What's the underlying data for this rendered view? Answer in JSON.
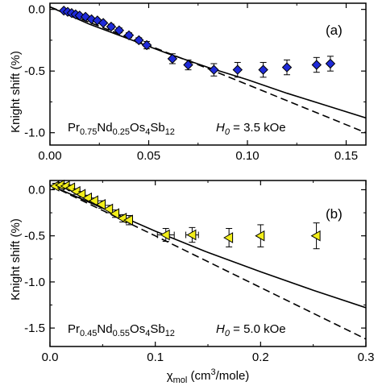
{
  "chart_data": [
    {
      "type": "scatter",
      "panel_label": "(a)",
      "xlim": [
        0,
        0.16
      ],
      "ylim": [
        -1.1,
        0.05
      ],
      "xticks": [
        0,
        0.05,
        0.1,
        0.15
      ],
      "xtick_labels": [
        "0.00",
        "0.05",
        "0.10",
        "0.15"
      ],
      "yticks": [
        0.0,
        -0.5,
        -1.0
      ],
      "ytick_labels": [
        "0.0",
        "-0.5",
        "-1.0"
      ],
      "ylabel": "Knight shift (%)",
      "annotation": {
        "compound": [
          "Pr",
          "0.75",
          "Nd",
          "0.25",
          "Os",
          "4",
          "Sb",
          "12"
        ],
        "field_symbol": "H",
        "field_sub": "0",
        "field_value": " = 3.5 kOe"
      },
      "marker": "diamond",
      "marker_color": "#1f2bd9",
      "series": [
        {
          "values": [
            {
              "x": 0.007,
              "y": -0.01
            },
            {
              "x": 0.009,
              "y": -0.02
            },
            {
              "x": 0.011,
              "y": -0.03
            },
            {
              "x": 0.013,
              "y": -0.04
            },
            {
              "x": 0.015,
              "y": -0.05
            },
            {
              "x": 0.018,
              "y": -0.06
            },
            {
              "x": 0.021,
              "y": -0.08
            },
            {
              "x": 0.024,
              "y": -0.09
            },
            {
              "x": 0.027,
              "y": -0.11
            },
            {
              "x": 0.031,
              "y": -0.14
            },
            {
              "x": 0.035,
              "y": -0.17
            },
            {
              "x": 0.04,
              "y": -0.21
            },
            {
              "x": 0.045,
              "y": -0.25
            },
            {
              "x": 0.049,
              "y": -0.29
            },
            {
              "x": 0.062,
              "y": -0.4
            },
            {
              "x": 0.07,
              "y": -0.45
            },
            {
              "x": 0.083,
              "y": -0.49
            },
            {
              "x": 0.095,
              "y": -0.49
            },
            {
              "x": 0.108,
              "y": -0.49
            },
            {
              "x": 0.12,
              "y": -0.47
            },
            {
              "x": 0.135,
              "y": -0.45
            },
            {
              "x": 0.142,
              "y": -0.44
            }
          ],
          "yerr": [
            0.01,
            0.01,
            0.01,
            0.01,
            0.01,
            0.01,
            0.01,
            0.01,
            0.01,
            0.02,
            0.02,
            0.02,
            0.02,
            0.03,
            0.04,
            0.04,
            0.05,
            0.06,
            0.06,
            0.06,
            0.06,
            0.06
          ]
        }
      ],
      "curves": [
        {
          "style": "solid",
          "x": [
            0.0,
            0.02,
            0.04,
            0.06,
            0.08,
            0.1,
            0.12,
            0.14,
            0.16
          ],
          "y": [
            0.02,
            -0.12,
            -0.24,
            -0.36,
            -0.47,
            -0.57,
            -0.68,
            -0.78,
            -0.88
          ]
        },
        {
          "style": "dashed",
          "x": [
            0.0,
            0.04,
            0.08,
            0.12,
            0.16
          ],
          "y": [
            0.02,
            -0.23,
            -0.48,
            -0.74,
            -1.0
          ]
        }
      ]
    },
    {
      "type": "scatter",
      "panel_label": "(b)",
      "xlim": [
        0,
        0.3
      ],
      "ylim": [
        -1.7,
        0.1
      ],
      "xticks": [
        0,
        0.1,
        0.2,
        0.3
      ],
      "xtick_labels": [
        "0.0",
        "0.1",
        "0.2",
        "0.3"
      ],
      "yticks": [
        0.0,
        -0.5,
        -1.0,
        -1.5
      ],
      "ytick_labels": [
        "0.0",
        "-0.5",
        "-1.0",
        "-1.5"
      ],
      "ylabel": "Knight shift (%)",
      "xlabel_main": "χ",
      "xlabel_sub": "mol",
      "xlabel_rest": " (cm",
      "xlabel_sup": "3",
      "xlabel_tail": "/mole)",
      "annotation": {
        "compound": [
          "Pr",
          "0.45",
          "Nd",
          "0.55",
          "Os",
          "4",
          "Sb",
          "12"
        ],
        "field_symbol": "H",
        "field_sub": "0",
        "field_value": " = 5.0 kOe"
      },
      "marker": "left-triangle",
      "marker_color": "#f2ee1a",
      "series": [
        {
          "values": [
            {
              "x": 0.005,
              "y": 0.04
            },
            {
              "x": 0.01,
              "y": 0.05
            },
            {
              "x": 0.015,
              "y": 0.04
            },
            {
              "x": 0.02,
              "y": 0.02
            },
            {
              "x": 0.025,
              "y": -0.02
            },
            {
              "x": 0.03,
              "y": -0.05
            },
            {
              "x": 0.036,
              "y": -0.09
            },
            {
              "x": 0.042,
              "y": -0.12
            },
            {
              "x": 0.049,
              "y": -0.16
            },
            {
              "x": 0.056,
              "y": -0.21
            },
            {
              "x": 0.062,
              "y": -0.26
            },
            {
              "x": 0.069,
              "y": -0.31
            },
            {
              "x": 0.075,
              "y": -0.33
            },
            {
              "x": 0.11,
              "y": -0.49
            },
            {
              "x": 0.135,
              "y": -0.49
            },
            {
              "x": 0.17,
              "y": -0.52
            },
            {
              "x": 0.2,
              "y": -0.5
            },
            {
              "x": 0.253,
              "y": -0.5
            }
          ],
          "yerr": [
            0.03,
            0.03,
            0.03,
            0.03,
            0.03,
            0.03,
            0.03,
            0.03,
            0.04,
            0.04,
            0.04,
            0.04,
            0.05,
            0.07,
            0.08,
            0.1,
            0.12,
            0.14
          ],
          "xerr": [
            0,
            0,
            0,
            0,
            0,
            0,
            0,
            0,
            0,
            0,
            0,
            0,
            0,
            0.008,
            0.006,
            0,
            0,
            0
          ]
        }
      ],
      "curves": [
        {
          "style": "solid",
          "x": [
            0.0,
            0.05,
            0.1,
            0.15,
            0.2,
            0.25,
            0.3
          ],
          "y": [
            0.05,
            -0.2,
            -0.45,
            -0.68,
            -0.89,
            -1.09,
            -1.28
          ]
        },
        {
          "style": "dashed",
          "x": [
            0.0,
            0.1,
            0.2,
            0.3
          ],
          "y": [
            0.05,
            -0.5,
            -1.06,
            -1.62
          ]
        }
      ]
    }
  ]
}
